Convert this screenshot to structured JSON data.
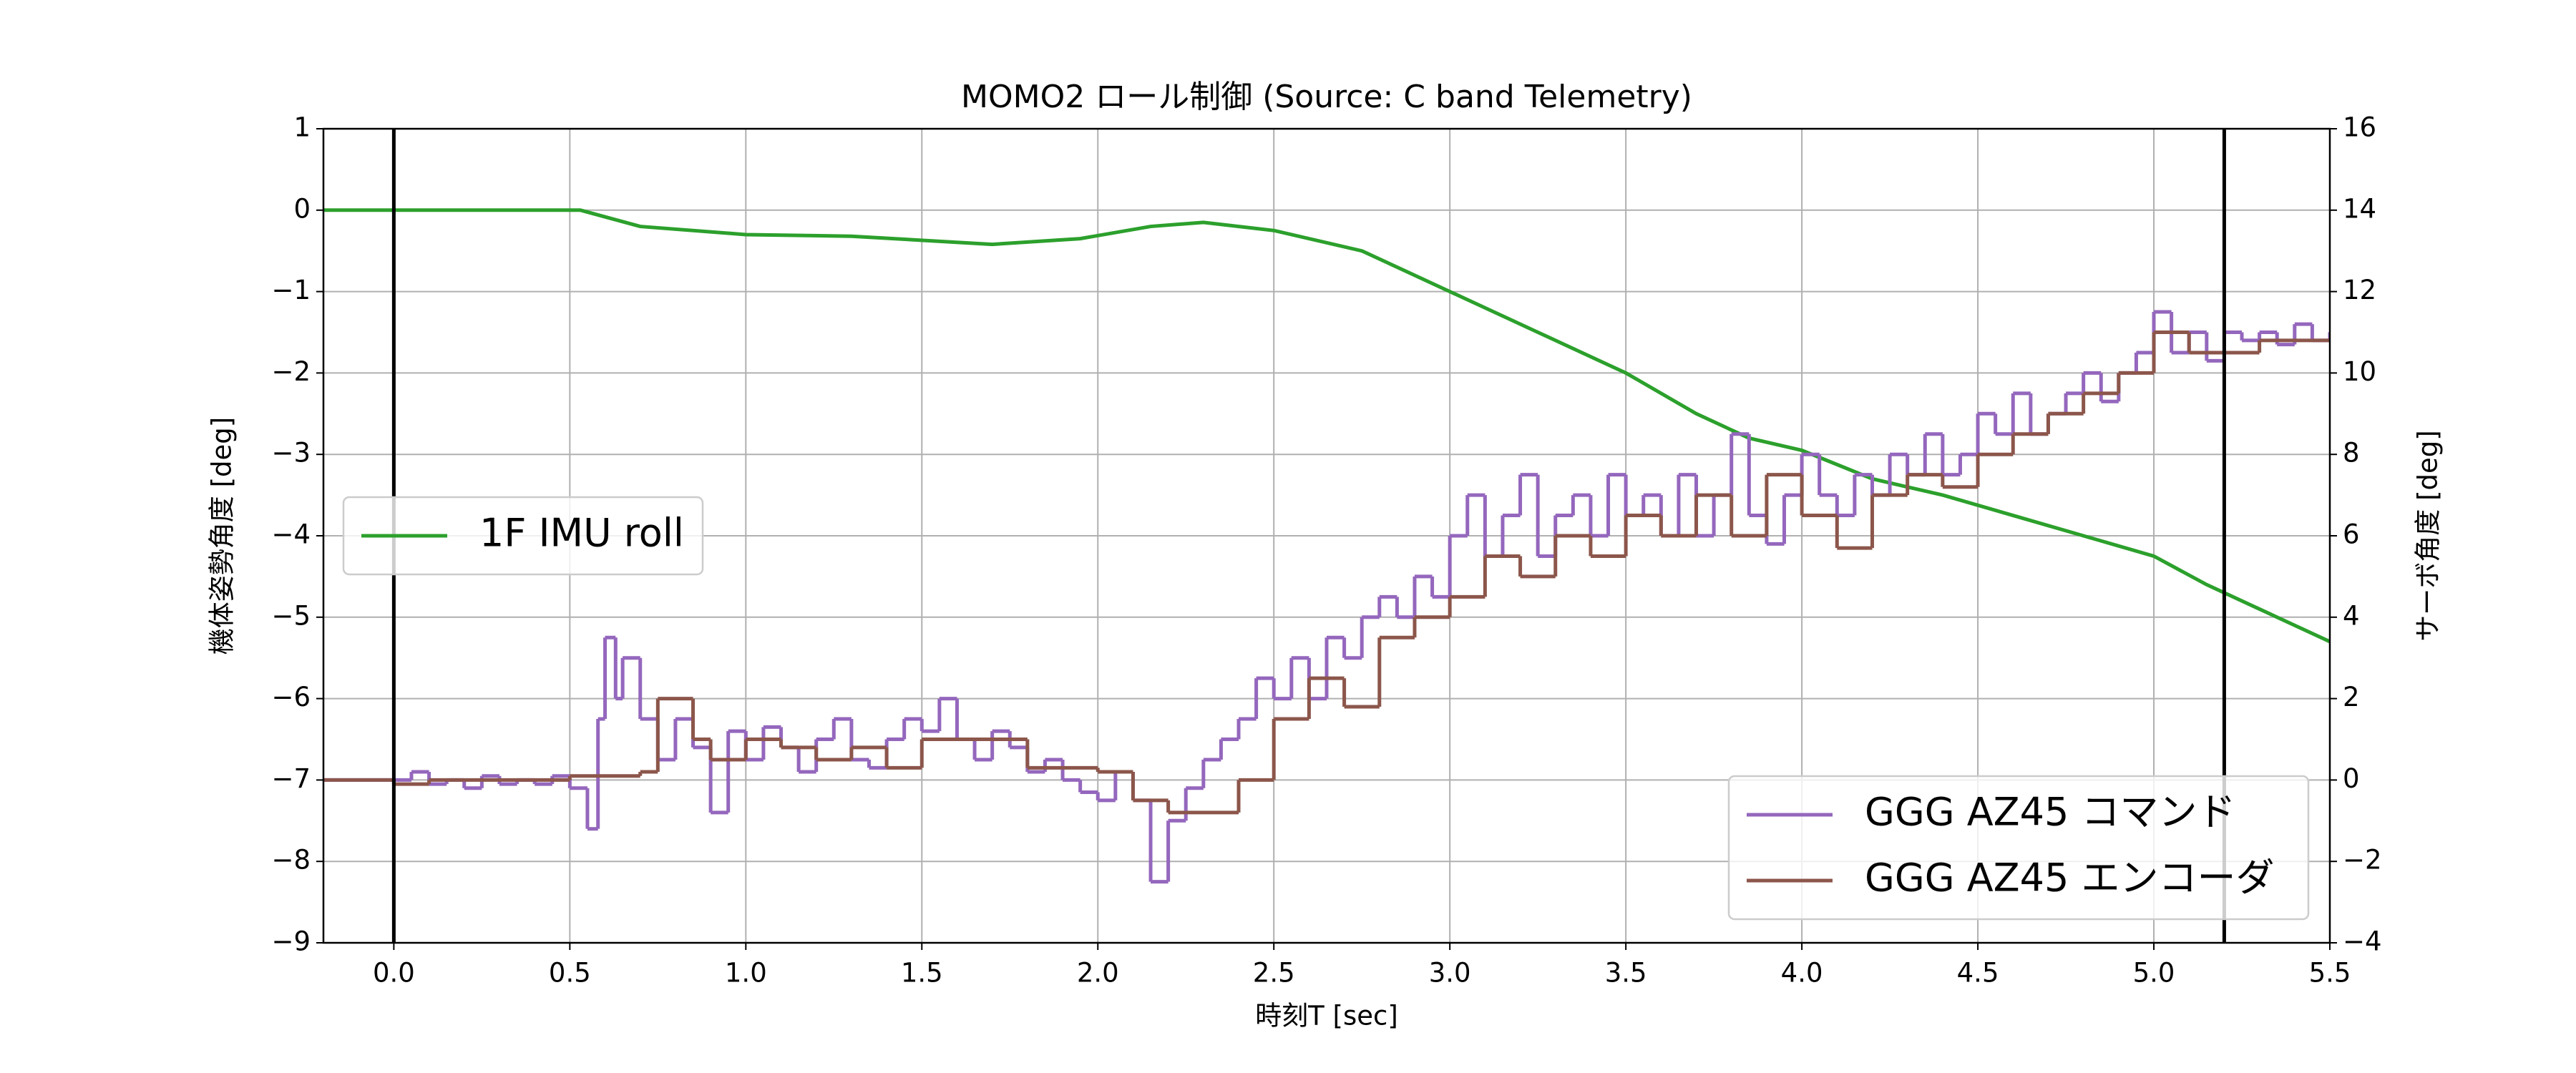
{
  "chart_data": {
    "type": "line",
    "title": "MOMO2 ロール制御 (Source: C band Telemetry)",
    "x_label": "時刻T [sec]",
    "y_label": "機体姿勢角度 [deg]",
    "y2_label": "サーボ角度 [deg]",
    "xlim": [
      -0.2,
      5.5
    ],
    "xticks": [
      {
        "value": 0,
        "label": "0.0"
      },
      0.5,
      {
        "value": 1,
        "label": "1.0"
      },
      1.5,
      {
        "value": 2,
        "label": "2.0"
      },
      2.5,
      {
        "value": 3,
        "label": "3.0"
      },
      3.5,
      {
        "value": 4,
        "label": "4.0"
      },
      4.5,
      {
        "value": 5,
        "label": "5.0"
      },
      5.5
    ],
    "ylim": [
      -9,
      1
    ],
    "yticks": [
      {
        "value": -9,
        "label": "−9"
      },
      {
        "value": -8,
        "label": "−8"
      },
      {
        "value": -7,
        "label": "−7"
      },
      {
        "value": -6,
        "label": "−6"
      },
      {
        "value": -5,
        "label": "−5"
      },
      {
        "value": -4,
        "label": "−4"
      },
      {
        "value": -3,
        "label": "−3"
      },
      {
        "value": -2,
        "label": "−2"
      },
      {
        "value": -1,
        "label": "−1"
      },
      0,
      1
    ],
    "y2lim": [
      -4,
      16
    ],
    "y2ticks": [
      {
        "value": -4,
        "label": "−4"
      },
      {
        "value": -2,
        "label": "−2"
      },
      0,
      2,
      4,
      6,
      8,
      10,
      12,
      14,
      16
    ],
    "grid": true,
    "vlines": [
      0,
      5.2
    ],
    "series": [
      {
        "name": "1F IMU roll",
        "color": "#2ca02c",
        "axis": "y",
        "drawstyle": "default",
        "legend_loc": "center left",
        "x": [
          -0.2,
          0.53,
          0.7,
          1.0,
          1.3,
          1.7,
          1.95,
          2.15,
          2.3,
          2.5,
          2.75,
          3.0,
          3.25,
          3.5,
          3.7,
          3.85,
          4.0,
          4.2,
          4.4,
          4.6,
          4.8,
          5.0,
          5.15,
          5.3,
          5.5
        ],
        "values": [
          0,
          0,
          -0.2,
          -0.3,
          -0.32,
          -0.42,
          -0.35,
          -0.2,
          -0.15,
          -0.25,
          -0.5,
          -1.0,
          -1.5,
          -2.0,
          -2.5,
          -2.8,
          -2.95,
          -3.3,
          -3.5,
          -3.75,
          -4.0,
          -4.25,
          -4.6,
          -4.9,
          -5.3
        ]
      },
      {
        "name": "GGG AZ45 コマンド",
        "color": "#9467bd",
        "axis": "y2",
        "drawstyle": "steps-post",
        "legend_loc": "lower right",
        "x": [
          -0.2,
          0,
          0.05,
          0.1,
          0.15,
          0.2,
          0.25,
          0.3,
          0.35,
          0.4,
          0.45,
          0.5,
          0.55,
          0.58,
          0.6,
          0.63,
          0.65,
          0.7,
          0.75,
          0.8,
          0.85,
          0.9,
          0.95,
          1.0,
          1.05,
          1.1,
          1.15,
          1.2,
          1.25,
          1.3,
          1.35,
          1.4,
          1.45,
          1.5,
          1.55,
          1.6,
          1.65,
          1.7,
          1.75,
          1.8,
          1.85,
          1.9,
          1.95,
          2.0,
          2.05,
          2.1,
          2.15,
          2.2,
          2.25,
          2.3,
          2.35,
          2.4,
          2.45,
          2.5,
          2.55,
          2.6,
          2.65,
          2.7,
          2.75,
          2.8,
          2.85,
          2.9,
          2.95,
          3.0,
          3.05,
          3.1,
          3.15,
          3.2,
          3.25,
          3.3,
          3.35,
          3.4,
          3.45,
          3.5,
          3.55,
          3.6,
          3.65,
          3.7,
          3.75,
          3.8,
          3.85,
          3.9,
          3.95,
          4.0,
          4.05,
          4.1,
          4.15,
          4.2,
          4.25,
          4.3,
          4.35,
          4.4,
          4.45,
          4.5,
          4.55,
          4.6,
          4.65,
          4.7,
          4.75,
          4.8,
          4.85,
          4.9,
          4.95,
          5.0,
          5.05,
          5.1,
          5.15,
          5.2,
          5.25,
          5.3,
          5.35,
          5.4,
          5.45,
          5.5
        ],
        "values": [
          0,
          0,
          0.2,
          -0.1,
          0,
          -0.2,
          0.1,
          -0.1,
          0,
          -0.1,
          0.1,
          -0.2,
          -1.2,
          1.5,
          3.5,
          2.0,
          3.0,
          1.5,
          0.5,
          1.5,
          0.8,
          -0.8,
          1.2,
          0.5,
          1.3,
          0.8,
          0.2,
          1.0,
          1.5,
          0.5,
          0.3,
          1.0,
          1.5,
          1.2,
          2.0,
          1.0,
          0.5,
          1.2,
          0.8,
          0.2,
          0.5,
          0,
          -0.3,
          -0.5,
          0.2,
          -0.5,
          -2.5,
          -1.0,
          -0.2,
          0.5,
          1.0,
          1.5,
          2.5,
          2.0,
          3.0,
          2.0,
          3.5,
          3.0,
          4.0,
          4.5,
          4.0,
          5.0,
          4.5,
          6.0,
          7.0,
          5.5,
          6.5,
          7.5,
          5.5,
          6.5,
          7.0,
          6.0,
          7.5,
          6.5,
          7.0,
          6.0,
          7.5,
          6.0,
          7.0,
          8.5,
          6.5,
          5.8,
          7.0,
          8.0,
          7.0,
          6.5,
          7.5,
          7.0,
          8.0,
          7.5,
          8.5,
          7.5,
          8.0,
          9.0,
          8.5,
          9.5,
          8.5,
          9.0,
          9.5,
          10.0,
          9.3,
          10.0,
          10.5,
          11.5,
          10.5,
          11.0,
          10.3,
          11.0,
          10.8,
          11.0,
          10.7,
          11.2,
          10.8,
          11.0
        ]
      },
      {
        "name": "GGG AZ45 エンコーダ",
        "color": "#8c564b",
        "axis": "y2",
        "drawstyle": "steps-post",
        "legend_loc": "lower right",
        "x": [
          -0.2,
          0.0,
          0.1,
          0.3,
          0.5,
          0.7,
          0.75,
          0.85,
          0.9,
          1.0,
          1.1,
          1.2,
          1.3,
          1.4,
          1.5,
          1.6,
          1.8,
          1.9,
          2.0,
          2.1,
          2.2,
          2.4,
          2.5,
          2.6,
          2.7,
          2.8,
          2.9,
          3.0,
          3.1,
          3.2,
          3.3,
          3.4,
          3.5,
          3.6,
          3.7,
          3.8,
          3.9,
          4.0,
          4.1,
          4.2,
          4.3,
          4.4,
          4.5,
          4.6,
          4.7,
          4.8,
          4.9,
          5.0,
          5.1,
          5.3,
          5.5
        ],
        "values": [
          0,
          -0.1,
          0,
          0,
          0.1,
          0.2,
          2.0,
          1.0,
          0.5,
          1.0,
          0.8,
          0.5,
          0.8,
          0.3,
          1.0,
          1.0,
          0.3,
          0.3,
          0.2,
          -0.5,
          -0.8,
          0,
          1.5,
          2.5,
          1.8,
          3.5,
          4.0,
          4.5,
          5.5,
          5.0,
          6.0,
          5.5,
          6.5,
          6.0,
          7.0,
          6.0,
          7.5,
          6.5,
          5.7,
          7.0,
          7.5,
          7.2,
          8.0,
          8.5,
          9.0,
          9.5,
          10.0,
          11.0,
          10.5,
          10.8,
          10.8
        ]
      }
    ]
  }
}
